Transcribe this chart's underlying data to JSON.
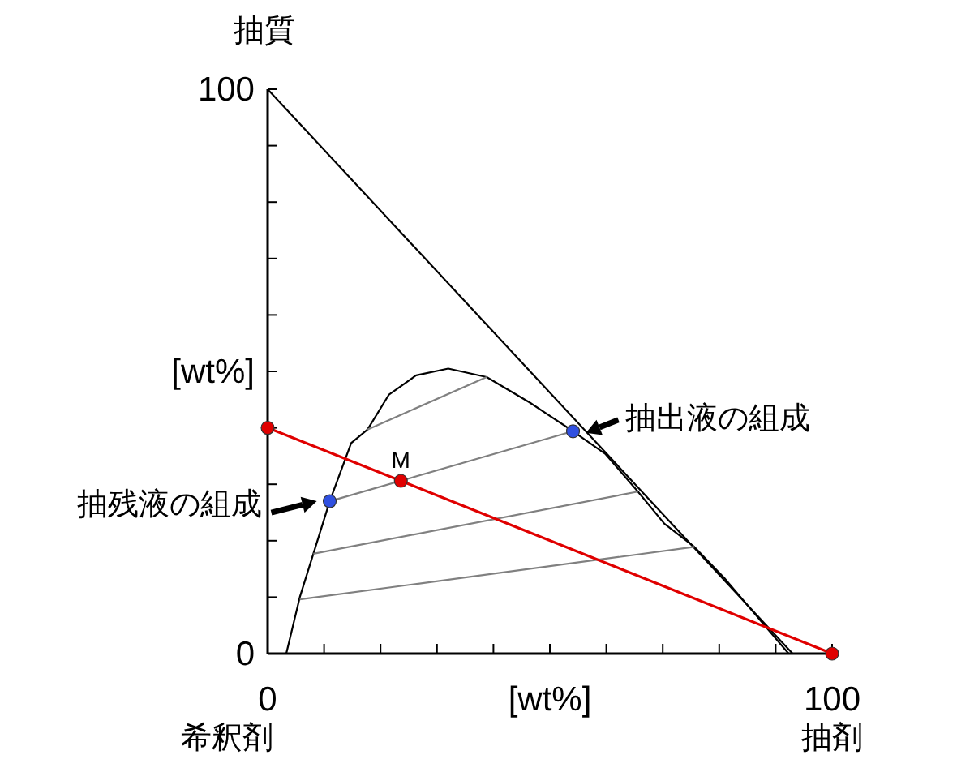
{
  "chart_data": {
    "type": "line",
    "xlim": [
      0,
      100
    ],
    "ylim": [
      0,
      100
    ],
    "xticks": [
      {
        "value": 0,
        "label": "0"
      },
      {
        "value": 10,
        "label": null
      },
      {
        "value": 20,
        "label": null
      },
      {
        "value": 30,
        "label": null
      },
      {
        "value": 40,
        "label": null
      },
      {
        "value": 50,
        "label": "[wt%]"
      },
      {
        "value": 60,
        "label": null
      },
      {
        "value": 70,
        "label": null
      },
      {
        "value": 80,
        "label": null
      },
      {
        "value": 90,
        "label": null
      },
      {
        "value": 100,
        "label": "100"
      }
    ],
    "yticks": [
      {
        "value": 0,
        "label": "0"
      },
      {
        "value": 10,
        "label": null
      },
      {
        "value": 20,
        "label": null
      },
      {
        "value": 30,
        "label": null
      },
      {
        "value": 40,
        "label": null
      },
      {
        "value": 50,
        "label": "[wt%]"
      },
      {
        "value": 60,
        "label": null
      },
      {
        "value": 70,
        "label": null
      },
      {
        "value": 80,
        "label": null
      },
      {
        "value": 90,
        "label": null
      },
      {
        "value": 100,
        "label": "100"
      }
    ],
    "grid": false,
    "series": [
      {
        "color": "#000000",
        "marker": "none",
        "x": [
          0,
          93
        ],
        "values": [
          100,
          0
        ]
      },
      {
        "color": "#000000",
        "marker": "none",
        "x": [
          3.3,
          5.7,
          8.1,
          11,
          14.8,
          17.7,
          21.5,
          26.3,
          32,
          38.8,
          46.4,
          54.1,
          59.8,
          65.6,
          70.3,
          75.6,
          80.9,
          86.6,
          92.3
        ],
        "values": [
          0,
          10,
          17.7,
          27,
          37.3,
          39.7,
          45.9,
          49.3,
          50.5,
          49,
          44.5,
          39.4,
          35.4,
          28.7,
          23,
          18.9,
          13.4,
          6.7,
          0
        ]
      },
      {
        "color": "#808080",
        "marker": "none",
        "x": [
          17.7,
          38.8
        ],
        "values": [
          39.7,
          49
        ]
      },
      {
        "color": "#808080",
        "marker": "none",
        "x": [
          11,
          54.1
        ],
        "values": [
          27,
          39.4
        ]
      },
      {
        "color": "#808080",
        "marker": "none",
        "x": [
          8.1,
          65.6
        ],
        "values": [
          17.7,
          28.7
        ]
      },
      {
        "color": "#808080",
        "marker": "none",
        "x": [
          5.7,
          75.6
        ],
        "values": [
          9.6,
          18.9
        ]
      },
      {
        "color": "#e00000",
        "marker": "circle",
        "x": [
          0,
          23.6,
          100
        ],
        "values": [
          40,
          30.6,
          0
        ]
      },
      {
        "type": "scatter",
        "color": "#3050e0",
        "marker": "circle",
        "x": [
          11,
          54.1
        ],
        "values": [
          27,
          39.4
        ]
      }
    ],
    "annotations": [
      "抽質",
      "希釈剤",
      "抽剤",
      {
        "text": "M",
        "x": 23.6,
        "y": 30.6
      },
      {
        "text": "抽出液の組成",
        "x": 54.1,
        "y": 39.4
      },
      {
        "text": "抽残液の組成",
        "x": 11,
        "y": 27
      }
    ]
  }
}
